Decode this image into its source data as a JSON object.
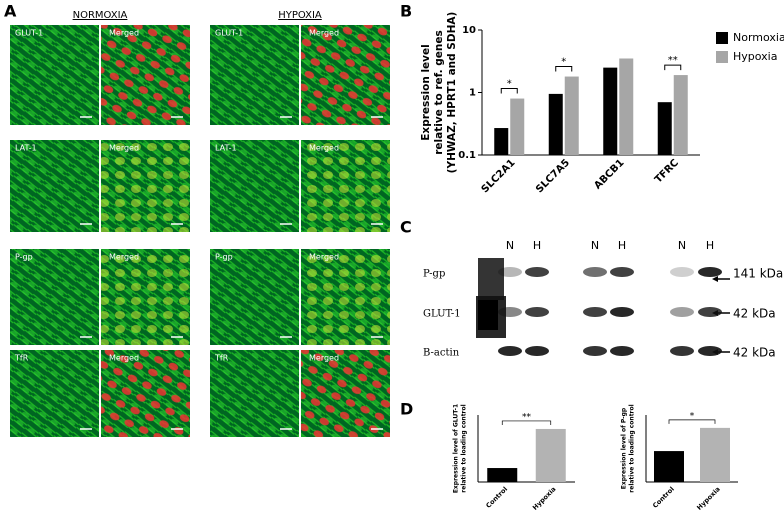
{
  "panels": {
    "a": "A",
    "b": "B",
    "c": "C",
    "d": "D"
  },
  "microscopy": {
    "conditions": [
      "NORMOXIA",
      "HYPOXIA"
    ],
    "rows": [
      "GLUT-1",
      "LAT-1",
      "P-gp",
      "TfR"
    ],
    "merged": "Merged"
  },
  "blot": {
    "lanes": [
      "N",
      "H"
    ],
    "rows": [
      "P-gp",
      "GLUT-1",
      "B-actin"
    ],
    "sizes": [
      "141 kDa",
      "42 kDa",
      "42 kDa"
    ]
  },
  "chart_data": [
    {
      "type": "bar",
      "categories": [
        "SLC2A1",
        "SLC7A5",
        "ABCB1",
        "TFRC"
      ],
      "series": [
        {
          "name": "Normoxia",
          "color": "#000000",
          "values": [
            0.27,
            0.95,
            2.5,
            0.7
          ]
        },
        {
          "name": "Hypoxia",
          "color": "#a6a6a6",
          "values": [
            0.8,
            1.8,
            3.5,
            1.9
          ]
        }
      ],
      "ylabel": [
        "Expression level",
        "relative to ref. genes",
        "(YHWAZ, HPRT1 and SDHA)"
      ],
      "ylim": [
        0.1,
        10
      ],
      "yticks": [
        0.1,
        1,
        10
      ],
      "log_scale": true,
      "legend": "right",
      "significance": [
        "*",
        "*",
        null,
        "**"
      ]
    },
    {
      "type": "bar",
      "categories": [
        "Control",
        "Hypoxia"
      ],
      "values": [
        0.25,
        0.95
      ],
      "colors": [
        "#000000",
        "#b3b3b3"
      ],
      "ylabel": [
        "Expression level of GLUT-1",
        "relative to loading control"
      ],
      "ylim": [
        0,
        1.2
      ],
      "significance": "**"
    },
    {
      "type": "bar",
      "categories": [
        "Control",
        "Hypoxia"
      ],
      "values": [
        0.6,
        1.05
      ],
      "colors": [
        "#000000",
        "#b3b3b3"
      ],
      "ylabel": [
        "Expression level of P-gp",
        "relative to loading control"
      ],
      "ylim": [
        0,
        1.3
      ],
      "significance": "*"
    }
  ]
}
